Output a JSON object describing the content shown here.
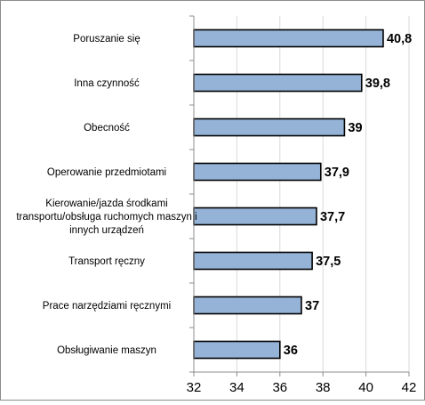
{
  "chart_data": {
    "type": "bar",
    "orientation": "horizontal",
    "title": "",
    "xlabel": "",
    "ylabel": "",
    "xlim": [
      32,
      42
    ],
    "x_ticks": [
      32,
      34,
      36,
      38,
      40,
      42
    ],
    "grid": "vertical",
    "bar_color": "#95B3D7",
    "bar_border_color": "#000000",
    "categories": [
      [
        "Poruszanie się"
      ],
      [
        "Inna czynność"
      ],
      [
        "Obecność"
      ],
      [
        "Operowanie przedmiotami"
      ],
      [
        "Kierowanie/jazda środkami",
        "transportu/obsługa ruchomych maszyn i",
        "innych urządzeń"
      ],
      [
        "Transport ręczny"
      ],
      [
        "Prace narzędziami ręcznymi"
      ],
      [
        "Obsługiwanie maszyn"
      ]
    ],
    "values": [
      40.8,
      39.8,
      39,
      37.9,
      37.7,
      37.5,
      37,
      36
    ],
    "value_labels": [
      "40,8",
      "39,8",
      "39",
      "37,9",
      "37,7",
      "37,5",
      "37",
      "36"
    ]
  }
}
